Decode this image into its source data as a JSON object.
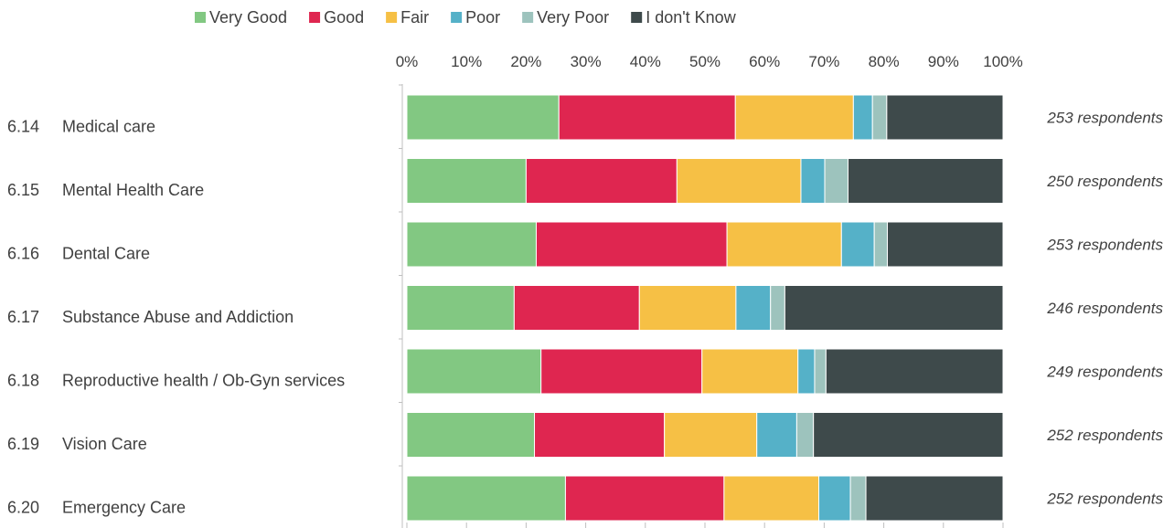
{
  "chart_data": {
    "type": "bar",
    "orientation": "horizontal",
    "stacked": "percent",
    "legend_position": "top",
    "grid": false,
    "xlim": [
      0,
      100
    ],
    "x_ticks": [
      "0%",
      "10%",
      "20%",
      "30%",
      "40%",
      "50%",
      "60%",
      "70%",
      "80%",
      "90%",
      "100%"
    ],
    "categories": [
      {
        "code": "6.14",
        "label": "Medical care",
        "respondents": "253 respondents"
      },
      {
        "code": "6.15",
        "label": "Mental Health Care",
        "respondents": "250 respondents"
      },
      {
        "code": "6.16",
        "label": "Dental Care",
        "respondents": "253 respondents"
      },
      {
        "code": "6.17",
        "label": "Substance Abuse and Addiction",
        "respondents": "246 respondents"
      },
      {
        "code": "6.18",
        "label": "Reproductive health / Ob-Gyn services",
        "respondents": "249 respondents"
      },
      {
        "code": "6.19",
        "label": "Vision Care",
        "respondents": "252 respondents"
      },
      {
        "code": "6.20",
        "label": "Emergency Care",
        "respondents": "252 respondents"
      }
    ],
    "series": [
      {
        "name": "Very Good",
        "color": "#82c882",
        "values": [
          25.5,
          20.0,
          21.7,
          18.0,
          22.5,
          21.4,
          26.6
        ]
      },
      {
        "name": "Good",
        "color": "#df2650",
        "values": [
          29.6,
          25.3,
          32.0,
          21.0,
          27.0,
          21.8,
          26.6
        ]
      },
      {
        "name": "Fair",
        "color": "#f6c045",
        "values": [
          19.8,
          20.8,
          19.2,
          16.2,
          16.1,
          15.5,
          15.9
        ]
      },
      {
        "name": "Poor",
        "color": "#55b1c8",
        "values": [
          3.2,
          4.0,
          5.5,
          5.8,
          2.8,
          6.7,
          5.3
        ]
      },
      {
        "name": "Very Poor",
        "color": "#9dc3bd",
        "values": [
          2.4,
          3.9,
          2.2,
          2.4,
          1.9,
          2.8,
          2.6
        ]
      },
      {
        "name": "I don't Know",
        "color": "#3e4a4b",
        "values": [
          19.5,
          26.0,
          19.4,
          36.6,
          29.7,
          31.8,
          23.0
        ]
      }
    ]
  }
}
